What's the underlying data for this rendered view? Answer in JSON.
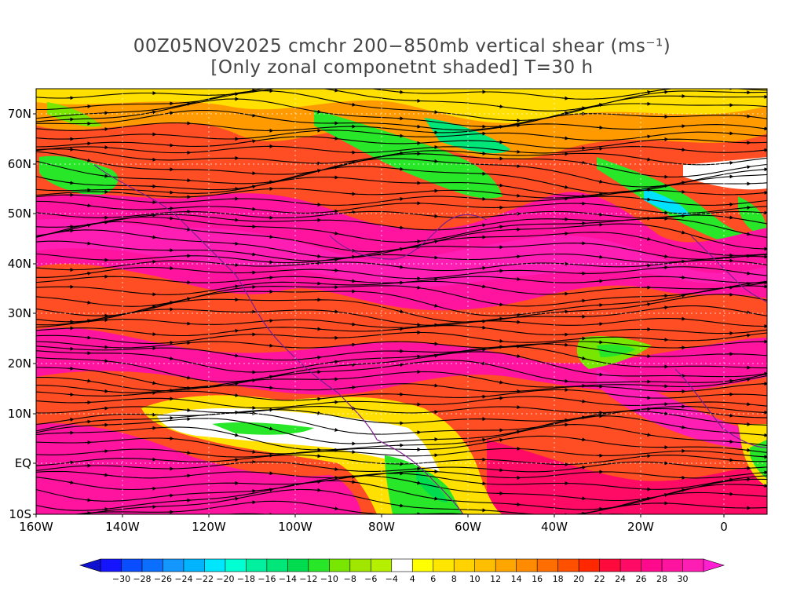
{
  "title_line1": "00Z05NOV2025 cmchr 200−850mb vertical shear (ms⁻¹)",
  "title_line2": "[Only zonal componetnt shaded] T=30 h",
  "lat_labels": [
    "70N",
    "60N",
    "50N",
    "40N",
    "30N",
    "20N",
    "10N",
    "EQ",
    "10S"
  ],
  "lon_labels": [
    "160W",
    "140W",
    "120W",
    "100W",
    "80W",
    "60W",
    "40W",
    "20W",
    "0"
  ],
  "colorbar_labels": [
    "−30",
    "−28",
    "−26",
    "−24",
    "−22",
    "−20",
    "−18",
    "−16",
    "−14",
    "−12",
    "−10",
    "−8",
    "−6",
    "−4",
    "4",
    "6",
    "8",
    "10",
    "12",
    "14",
    "16",
    "18",
    "20",
    "22",
    "24",
    "26",
    "28",
    "30"
  ],
  "colorbar_colors": [
    "#1414ff",
    "#0a4cff",
    "#0a6eff",
    "#1496ff",
    "#00b4ff",
    "#00e6ff",
    "#00ffd2",
    "#00f0a0",
    "#00e678",
    "#00dc50",
    "#28e628",
    "#78e600",
    "#a0e600",
    "#b4f000",
    "#ffffff",
    "#ffff00",
    "#ffe600",
    "#ffd200",
    "#ffbe00",
    "#ffa500",
    "#ff8c00",
    "#ff6e00",
    "#ff5000",
    "#ff2800",
    "#ff0a3c",
    "#ff0a64",
    "#ff0a8c",
    "#ff14a0",
    "#ff1eb4"
  ],
  "field_style": "zonal shear shaded, streamlines of shear vector overlaid, coastlines in purple/black"
}
